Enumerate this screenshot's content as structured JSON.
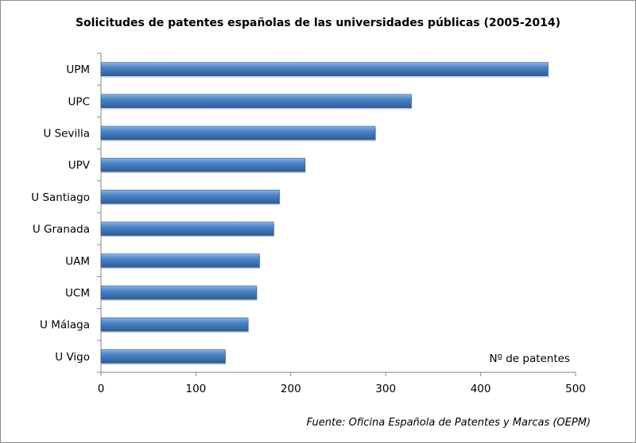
{
  "chart_data": {
    "type": "bar",
    "orientation": "horizontal",
    "title": "Solicitudes de patentes españolas de las universidades públicas (2005-2014)",
    "categories": [
      "UPM",
      "UPC",
      "U Sevilla",
      "UPV",
      "U Santiago",
      "U Granada",
      "UAM",
      "UCM",
      "U Málaga",
      "U Vigo"
    ],
    "values": [
      471,
      327,
      289,
      215,
      188,
      182,
      167,
      164,
      155,
      131
    ],
    "xlabel": "Nº de patentes",
    "ylabel": "",
    "xlim": [
      0,
      500
    ],
    "xticks": [
      "0",
      "100",
      "200",
      "300",
      "400",
      "500"
    ],
    "grid": false,
    "bar_color": "#4a7ebb",
    "source": "Fuente: Oficina Española de Patentes y Marcas (OEPM)"
  }
}
